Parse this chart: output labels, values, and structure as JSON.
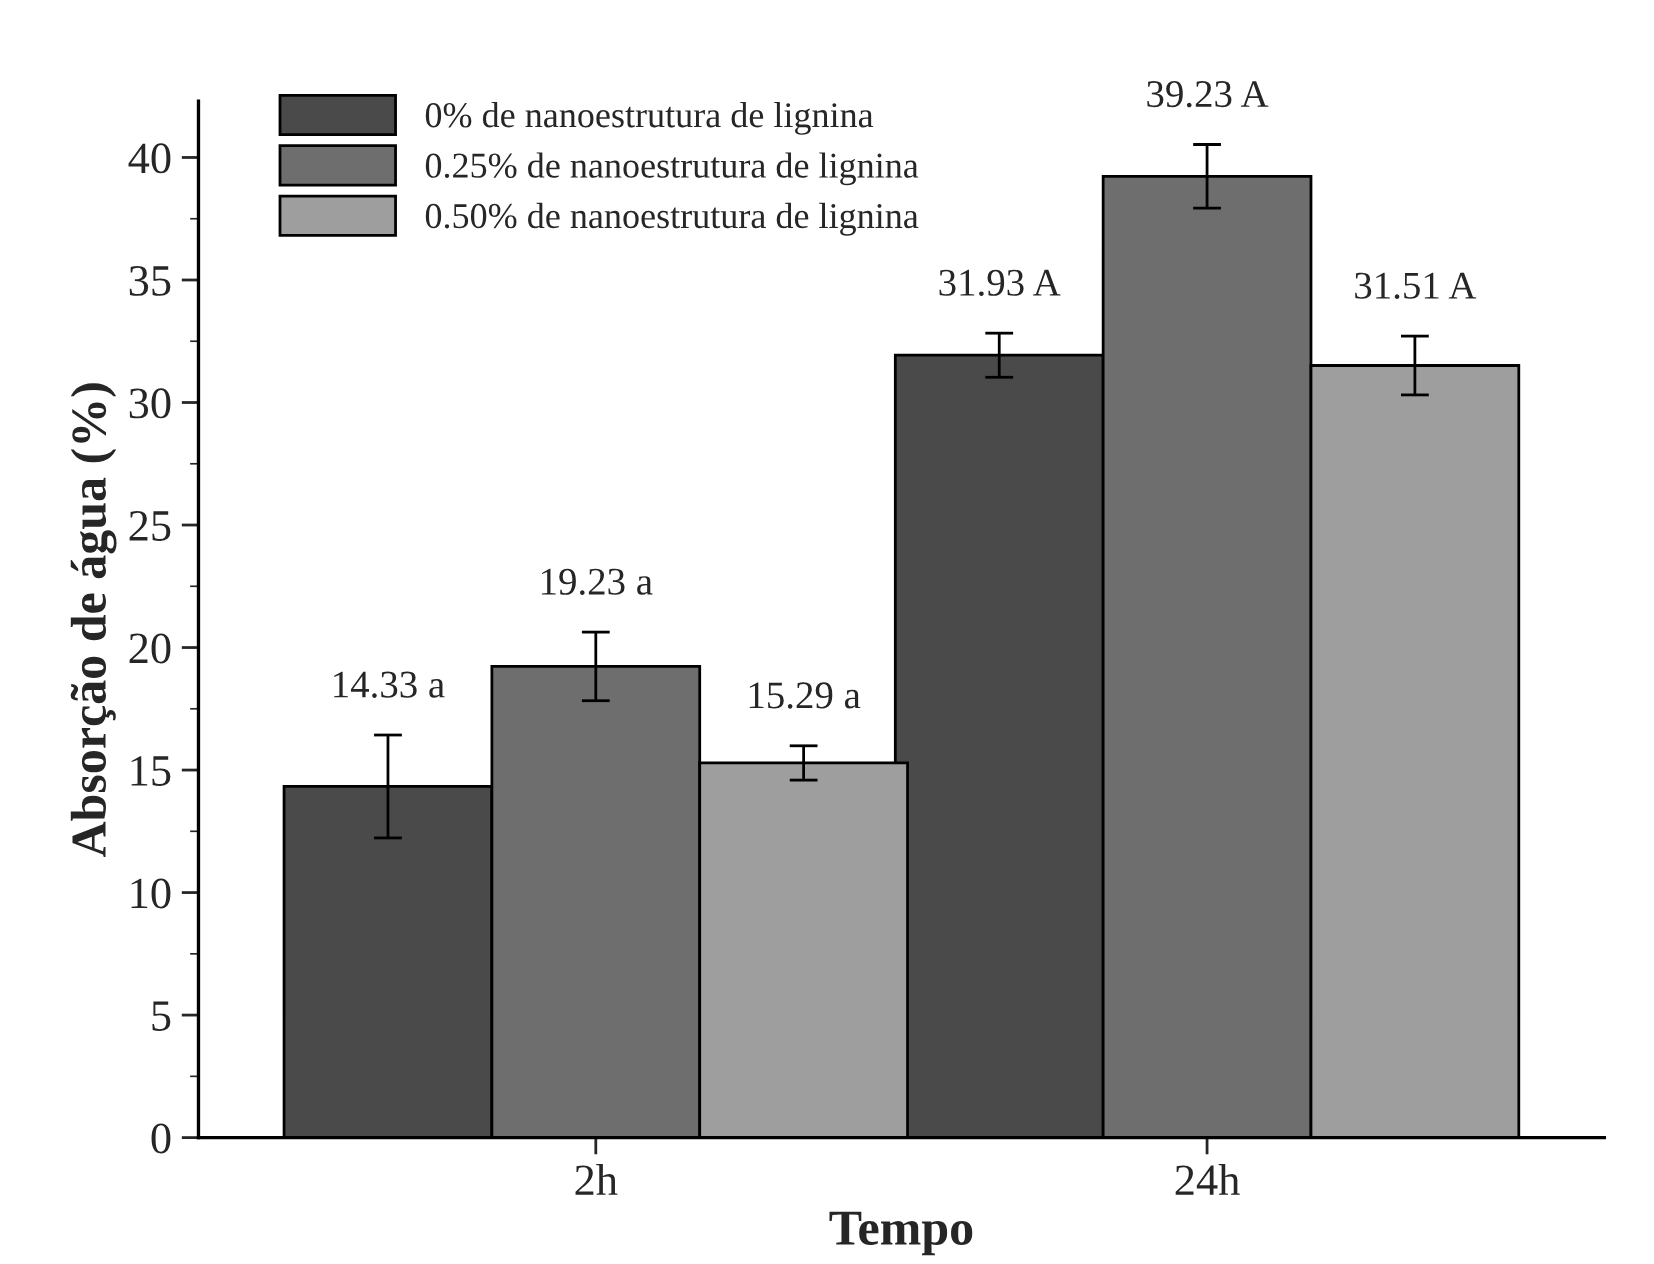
{
  "chart_data": {
    "type": "bar",
    "xlabel": "Tempo",
    "ylabel": "Absorção de água (%)",
    "categories": [
      "2h",
      "24h"
    ],
    "series": [
      {
        "name": "0% de nanoestrutura de lignina",
        "color": "#4a4a4a",
        "values": [
          14.33,
          31.93
        ],
        "errors": [
          2.1,
          0.9
        ],
        "value_labels": [
          "14.33 a",
          "31.93 A"
        ]
      },
      {
        "name": "0.25% de nanoestrutura de lignina",
        "color": "#6e6e6e",
        "values": [
          19.23,
          39.23
        ],
        "errors": [
          1.4,
          1.3
        ],
        "value_labels": [
          "19.23 a",
          "39.23 A"
        ]
      },
      {
        "name": "0.50% de nanoestrutura de lignina",
        "color": "#9e9e9e",
        "values": [
          15.29,
          31.51
        ],
        "errors": [
          0.7,
          1.2
        ],
        "value_labels": [
          "15.29 a",
          "31.51 A"
        ]
      }
    ],
    "ylim": [
      0,
      42.3
    ],
    "yticks": [
      0,
      5,
      10,
      15,
      20,
      25,
      30,
      35,
      40
    ],
    "grid": false,
    "legend": "top left"
  }
}
